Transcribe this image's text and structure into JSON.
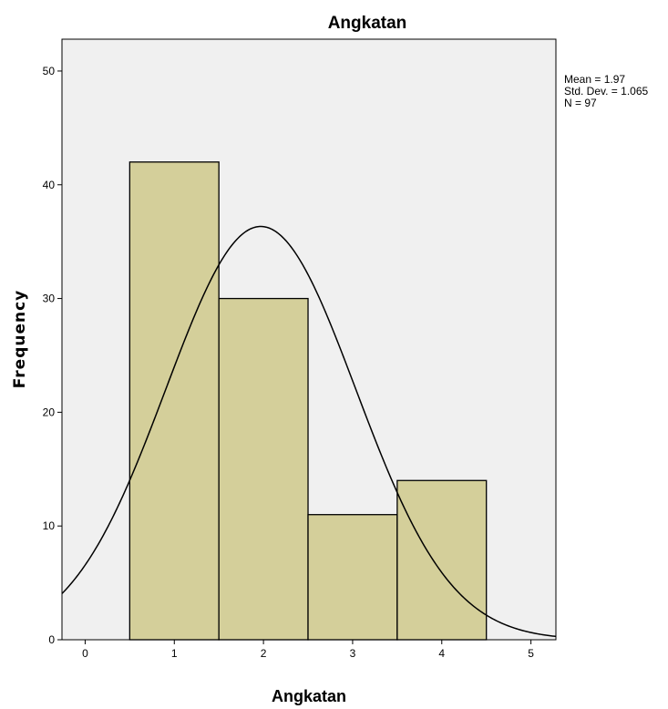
{
  "chart_data": {
    "type": "bar",
    "title": "Angkatan",
    "xlabel": "Angkatan",
    "ylabel": "Frequency",
    "bins": [
      {
        "x": 1,
        "value": 42
      },
      {
        "x": 2,
        "value": 30
      },
      {
        "x": 3,
        "value": 11
      },
      {
        "x": 4,
        "value": 14
      }
    ],
    "bin_width": 1,
    "xlim": [
      -0.26,
      5.28
    ],
    "ylim": [
      0,
      52.8
    ],
    "xticks": [
      0,
      1,
      2,
      3,
      4,
      5
    ],
    "yticks": [
      0,
      10,
      20,
      30,
      40,
      50
    ],
    "normal_curve": {
      "mean": 1.97,
      "std": 1.065,
      "n": 97
    },
    "stats": [
      "Mean = 1.97",
      "Std. Dev. = 1.065",
      "N = 97"
    ],
    "colors": {
      "bar_fill": "#d4cf9a",
      "bar_stroke": "#000000",
      "plot_bg": "#f0f0f0",
      "curve": "#000000"
    },
    "grid": false
  }
}
